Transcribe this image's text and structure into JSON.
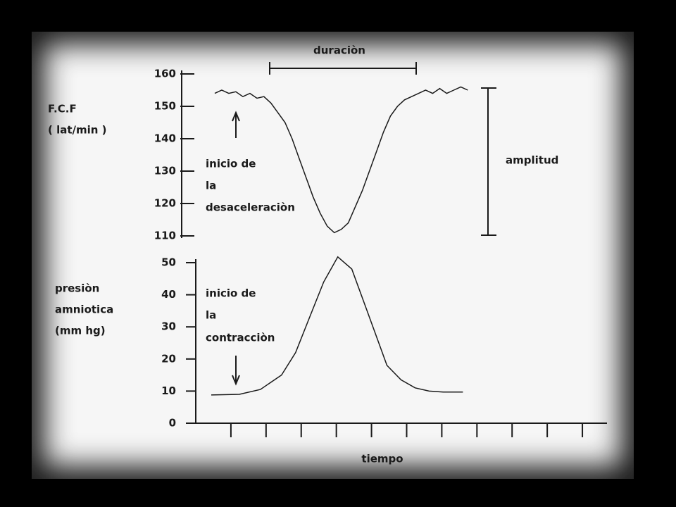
{
  "chart_data": [
    {
      "type": "line",
      "ylabel": [
        "F.C.F",
        "( lat/min )"
      ],
      "annotations": [
        "duraciòn",
        "amplitud",
        "inicio de",
        "la",
        "desaceleraciòn"
      ],
      "x": [
        0.54,
        0.74,
        0.94,
        1.14,
        1.34,
        1.54,
        1.74,
        1.94,
        2.14,
        2.34,
        2.54,
        2.74,
        2.94,
        3.14,
        3.34,
        3.54,
        3.74,
        3.94,
        4.14,
        4.34,
        4.54,
        4.74,
        4.94,
        5.14,
        5.34,
        5.54,
        5.74,
        5.94,
        6.14,
        6.34,
        6.54,
        6.74,
        6.94,
        7.14,
        7.34,
        7.54,
        7.74
      ],
      "values": [
        154,
        155,
        154,
        154.5,
        153,
        154,
        152.5,
        153,
        151,
        148,
        145,
        140,
        134,
        128,
        122,
        117,
        113,
        111,
        112,
        114,
        119,
        124,
        130,
        136,
        142,
        147,
        150,
        152,
        153,
        154,
        155,
        154,
        155.5,
        154,
        155,
        156,
        155
      ],
      "color": "#1a1a1a",
      "xlim": [
        0,
        11.7
      ],
      "ylim": [
        110,
        160
      ],
      "yticks": [
        110,
        120,
        130,
        140,
        150,
        160
      ]
    },
    {
      "type": "line",
      "ylabel": [
        "presiòn",
        "amniotica",
        "(mm hg)"
      ],
      "xlabel": "tiempo",
      "annotations": [
        "inicio de",
        "la",
        "contracciòn"
      ],
      "x": [
        0.44,
        1.24,
        1.84,
        2.44,
        2.84,
        3.24,
        3.64,
        4.04,
        4.44,
        4.84,
        5.24,
        5.44,
        5.84,
        6.24,
        6.64,
        7.04,
        7.6
      ],
      "values": [
        8.8,
        9,
        10.5,
        15,
        22,
        33,
        44,
        51.8,
        48,
        36,
        24,
        18,
        13.5,
        11,
        10,
        9.7,
        9.7
      ],
      "color": "#1a1a1a",
      "xlim": [
        0,
        11.7
      ],
      "xticks": [
        1,
        2,
        3,
        4,
        5,
        6,
        7,
        8,
        9,
        10,
        11
      ],
      "ylim": [
        0,
        50
      ],
      "yticks": [
        0,
        10,
        20,
        30,
        40,
        50
      ]
    }
  ]
}
